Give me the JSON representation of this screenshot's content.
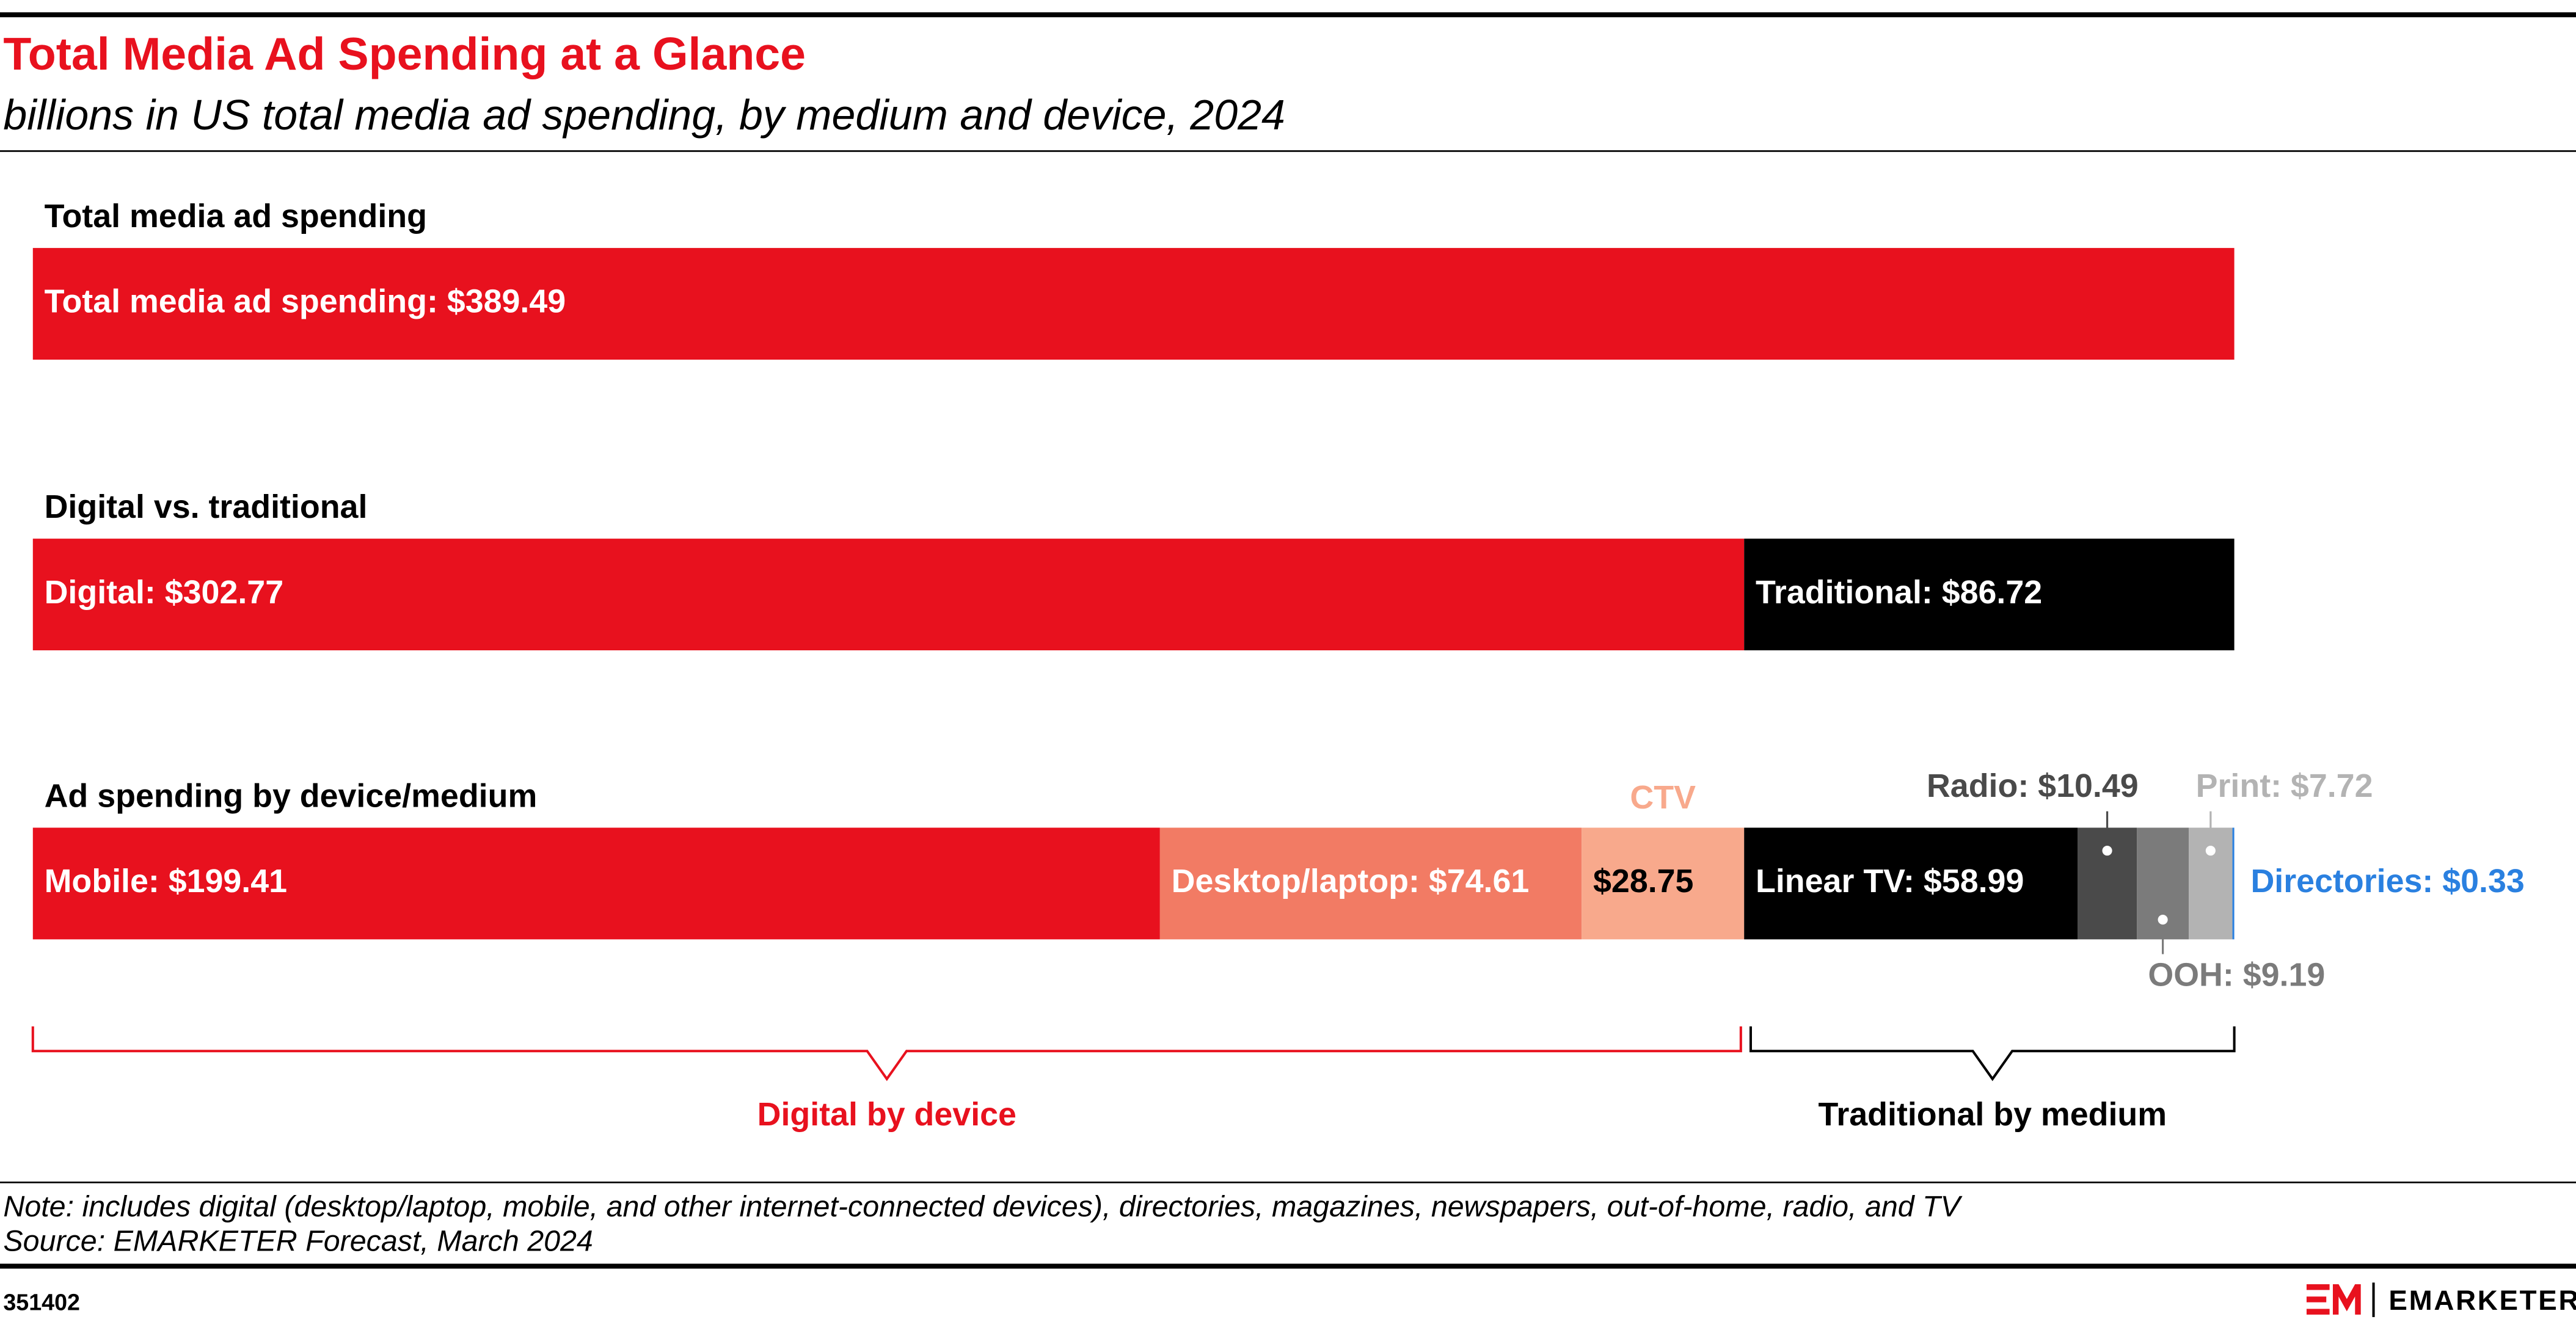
{
  "chart_data": {
    "type": "stacked-bar",
    "title": "Total Media Ad Spending at a Glance",
    "subtitle": "billions in US total media ad spending, by medium and device, 2024",
    "rows": [
      {
        "title": "Total media ad spending",
        "values": [
          389.49
        ],
        "value_labels": [
          "Total media ad spending: $389.49"
        ],
        "colors": [
          "#e8111e"
        ]
      },
      {
        "title": "Digital vs. traditional",
        "values": [
          302.77,
          86.72
        ],
        "value_labels": [
          "Digital: $302.77",
          "Traditional: $86.72"
        ],
        "colors": [
          "#e8111e",
          "#000000"
        ]
      },
      {
        "title": "Ad spending by device/medium",
        "categories": [
          null,
          null,
          "CTV",
          null,
          null,
          null,
          null,
          null
        ],
        "values": [
          199.41,
          74.61,
          28.75,
          58.99,
          10.49,
          9.19,
          7.72,
          0.33
        ],
        "value_labels": [
          "Mobile: $199.41",
          "Desktop/laptop: $74.61",
          "$28.75",
          "Linear TV: $58.99",
          "Radio: $10.49",
          "OOH: $9.19",
          "Print: $7.72",
          "Directories: $0.33"
        ],
        "colors": [
          "#e8111e",
          "#f27b64",
          "#f8a98c",
          "#000000",
          "#4a4a4a",
          "#7b7b7b",
          "#b3b3b3",
          "#2a80e0"
        ]
      }
    ],
    "brackets": [
      {
        "label": "Digital by device",
        "color": "#e8111e"
      },
      {
        "label": "Traditional by medium",
        "color": "#000000"
      }
    ],
    "note": "Note: includes digital (desktop/laptop, mobile, and other internet-connected devices), directories, magazines, newspapers, out-of-home, radio, and TV",
    "source": "Source: EMARKETER Forecast, March 2024",
    "chart_id": "351402",
    "brand": "EMARKETER"
  }
}
